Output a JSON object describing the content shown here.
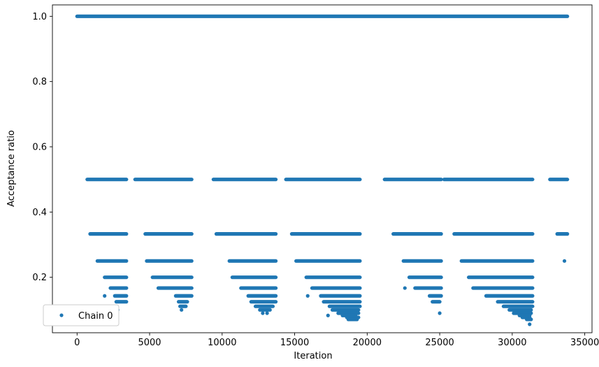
{
  "chart_data": {
    "type": "scatter",
    "title": "",
    "xlabel": "Iteration",
    "ylabel": "Acceptance ratio",
    "xlim": [
      -1700,
      35500
    ],
    "ylim": [
      0.03,
      1.035
    ],
    "xticks": [
      0,
      5000,
      10000,
      15000,
      20000,
      25000,
      30000,
      35000
    ],
    "xtick_labels": [
      "0",
      "5000",
      "10000",
      "15000",
      "20000",
      "25000",
      "30000",
      "35000"
    ],
    "yticks": [
      0.2,
      0.4,
      0.6,
      0.8,
      1.0
    ],
    "ytick_labels": [
      "0.2",
      "0.4",
      "0.6",
      "0.8",
      "1.0"
    ],
    "grid": false,
    "legend_position": "lower-left",
    "color": "#1f77b4",
    "series": [
      {
        "name": "Chain 0",
        "x_range": [
          0,
          33800
        ],
        "levels": [
          {
            "y": 1.0,
            "spans": [
              [
                0,
                33800
              ]
            ]
          },
          {
            "y": 0.5,
            "spans": [
              [
                700,
                3400
              ],
              [
                4000,
                7900
              ],
              [
                9400,
                13700
              ],
              [
                14400,
                19500
              ],
              [
                21200,
                25100
              ],
              [
                25300,
                31400
              ],
              [
                32600,
                33800
              ]
            ]
          },
          {
            "y": 0.333,
            "spans": [
              [
                900,
                3400
              ],
              [
                4700,
                7900
              ],
              [
                9600,
                13700
              ],
              [
                14800,
                19500
              ],
              [
                21800,
                25100
              ],
              [
                26000,
                31400
              ],
              [
                33100,
                33800
              ]
            ]
          },
          {
            "y": 0.25,
            "spans": [
              [
                1400,
                3400
              ],
              [
                4800,
                7900
              ],
              [
                10500,
                13700
              ],
              [
                15100,
                19500
              ],
              [
                22500,
                25100
              ],
              [
                26500,
                31400
              ]
            ],
            "points": [
              33600
            ]
          },
          {
            "y": 0.2,
            "spans": [
              [
                1900,
                3400
              ],
              [
                5200,
                7900
              ],
              [
                10700,
                13700
              ],
              [
                15800,
                19500
              ],
              [
                22900,
                25100
              ],
              [
                27000,
                31400
              ]
            ]
          },
          {
            "y": 0.167,
            "spans": [
              [
                2300,
                3400
              ],
              [
                5600,
                7900
              ],
              [
                11300,
                13700
              ],
              [
                16200,
                19500
              ],
              [
                23300,
                25100
              ],
              [
                27300,
                31400
              ]
            ],
            "points": [
              22600
            ]
          },
          {
            "y": 0.143,
            "spans": [
              [
                2600,
                3400
              ],
              [
                6800,
                7900
              ],
              [
                11800,
                13700
              ],
              [
                16800,
                19500
              ],
              [
                24300,
                25100
              ],
              [
                28200,
                31400
              ]
            ],
            "points": [
              1900,
              15900
            ]
          },
          {
            "y": 0.125,
            "spans": [
              [
                2700,
                3400
              ],
              [
                7000,
                7600
              ],
              [
                12000,
                13700
              ],
              [
                17000,
                19500
              ],
              [
                24500,
                25000
              ],
              [
                29000,
                31400
              ]
            ]
          },
          {
            "y": 0.111,
            "spans": [
              [
                7100,
                7500
              ],
              [
                12300,
                13500
              ],
              [
                17400,
                19500
              ],
              [
                29400,
                31400
              ]
            ]
          },
          {
            "y": 0.1,
            "spans": [
              [
                12600,
                13300
              ],
              [
                17600,
                19400
              ],
              [
                29800,
                31300
              ]
            ],
            "points": [
              2800,
              7200
            ]
          },
          {
            "y": 0.09,
            "spans": [
              [
                18000,
                19400
              ],
              [
                30100,
                31300
              ]
            ],
            "points": [
              12800,
              13100,
              25000
            ]
          },
          {
            "y": 0.083,
            "spans": [
              [
                18300,
                19200
              ],
              [
                30500,
                31200
              ]
            ],
            "points": [
              17300
            ]
          },
          {
            "y": 0.077,
            "spans": [
              [
                18600,
                19400
              ],
              [
                30700,
                31200
              ]
            ]
          },
          {
            "y": 0.071,
            "spans": [
              [
                18700,
                19300
              ],
              [
                31000,
                31300
              ]
            ]
          },
          {
            "y": 0.056,
            "points": [
              31200
            ]
          }
        ]
      }
    ]
  }
}
